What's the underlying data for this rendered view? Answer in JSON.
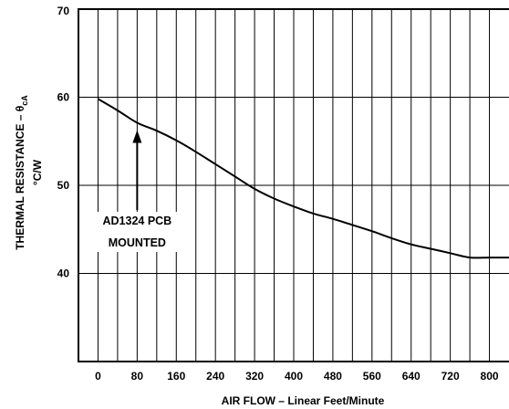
{
  "chart_data": {
    "type": "line",
    "title": "",
    "xlabel": "AIR FLOW – Linear Feet/Minute",
    "ylabel": "THERMAL RESISTANCE – θcA",
    "ylabel_unit": "°C/W",
    "xlim": [
      -40,
      840
    ],
    "ylim": [
      30,
      70
    ],
    "x_ticks": [
      0,
      80,
      160,
      240,
      320,
      400,
      480,
      560,
      640,
      720,
      800
    ],
    "x_tick_labels": [
      "0",
      "80",
      "160",
      "240",
      "320",
      "400",
      "480",
      "560",
      "640",
      "720",
      "800"
    ],
    "y_ticks": [
      40,
      50,
      60,
      70
    ],
    "y_tick_labels": [
      "40",
      "50",
      "60",
      "70"
    ],
    "grid": true,
    "series": [
      {
        "x": [
          0,
          40,
          80,
          120,
          160,
          200,
          240,
          280,
          320,
          360,
          400,
          440,
          480,
          520,
          560,
          600,
          640,
          680,
          720,
          760,
          800,
          840
        ],
        "y": [
          59.8,
          58.5,
          57.1,
          56.2,
          55.1,
          53.8,
          52.4,
          51.0,
          49.6,
          48.5,
          47.6,
          46.8,
          46.2,
          45.5,
          44.8,
          44.0,
          43.3,
          42.8,
          42.3,
          41.8,
          41.8,
          41.8
        ]
      }
    ],
    "annotations": [
      {
        "lines": [
          "AD1324 PCB",
          "MOUNTED"
        ],
        "arrow_to": {
          "x": 80,
          "y": 57.1
        }
      }
    ]
  }
}
